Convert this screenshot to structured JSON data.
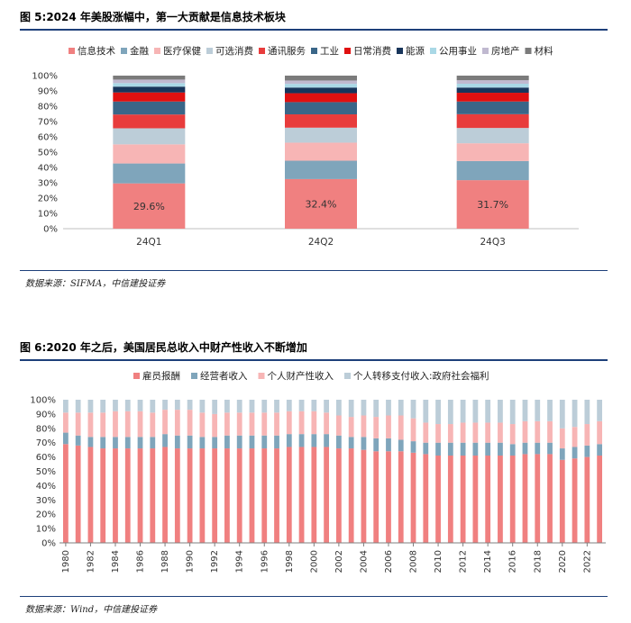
{
  "chart_data": [
    {
      "type": "bar",
      "stacked": "percent",
      "title": "图 5:2024 年美股涨幅中，第一大贡献是信息技术板块",
      "source": "数据来源：SIFMA，中信建投证券",
      "categories": [
        "24Q1",
        "24Q2",
        "24Q3"
      ],
      "ylim": [
        0,
        100
      ],
      "yticks": [
        "0%",
        "10%",
        "20%",
        "30%",
        "40%",
        "50%",
        "60%",
        "70%",
        "80%",
        "90%",
        "100%"
      ],
      "legend_position": "top",
      "series": [
        {
          "name": "信息技术",
          "color": "#f08080",
          "values": [
            29.6,
            32.4,
            31.7
          ]
        },
        {
          "name": "金融",
          "color": "#7fa5bb",
          "values": [
            13.0,
            12.0,
            12.5
          ]
        },
        {
          "name": "医疗保健",
          "color": "#f7b5b5",
          "values": [
            12.5,
            11.8,
            11.6
          ]
        },
        {
          "name": "可选消费",
          "color": "#bccdd8",
          "values": [
            10.5,
            9.8,
            10.0
          ]
        },
        {
          "name": "通讯服务",
          "color": "#e83c3c",
          "values": [
            9.0,
            8.7,
            9.0
          ]
        },
        {
          "name": "工业",
          "color": "#3a6688",
          "values": [
            8.5,
            8.0,
            8.3
          ]
        },
        {
          "name": "日常消费",
          "color": "#e01010",
          "values": [
            5.9,
            5.8,
            5.7
          ]
        },
        {
          "name": "能源",
          "color": "#18355b",
          "values": [
            3.8,
            3.7,
            3.4
          ]
        },
        {
          "name": "公用事业",
          "color": "#a9d8e6",
          "values": [
            2.3,
            2.4,
            2.5
          ]
        },
        {
          "name": "房地产",
          "color": "#c0b9d0",
          "values": [
            2.3,
            2.2,
            2.3
          ]
        },
        {
          "name": "材料",
          "color": "#7b7b7b",
          "values": [
            2.6,
            3.2,
            3.0
          ]
        }
      ],
      "data_labels": [
        "29.6%",
        "32.4%",
        "31.7%"
      ]
    },
    {
      "type": "bar",
      "stacked": "percent",
      "title": "图 6:2020 年之后，美国居民总收入中财产性收入不断增加",
      "source": "数据来源：Wind，中信建投证券",
      "x": [
        1980,
        1981,
        1982,
        1983,
        1984,
        1985,
        1986,
        1987,
        1988,
        1989,
        1990,
        1991,
        1992,
        1993,
        1994,
        1995,
        1996,
        1997,
        1998,
        1999,
        2000,
        2001,
        2002,
        2003,
        2004,
        2005,
        2006,
        2007,
        2008,
        2009,
        2010,
        2011,
        2012,
        2013,
        2014,
        2015,
        2016,
        2017,
        2018,
        2019,
        2020,
        2021,
        2022,
        2023
      ],
      "xtick_labels": [
        "1980",
        "1982",
        "1984",
        "1986",
        "1988",
        "1990",
        "1992",
        "1994",
        "1996",
        "1998",
        "2000",
        "2002",
        "2004",
        "2006",
        "2008",
        "2010",
        "2012",
        "2014",
        "2016",
        "2018",
        "2020",
        "2022"
      ],
      "ylim": [
        0,
        100
      ],
      "yticks": [
        "0%",
        "10%",
        "20%",
        "30%",
        "40%",
        "50%",
        "60%",
        "70%",
        "80%",
        "90%",
        "100%"
      ],
      "legend_position": "top",
      "series": [
        {
          "name": "雇员报酬",
          "color": "#f08080",
          "values": [
            69,
            68,
            67,
            66,
            66,
            66,
            66,
            66,
            67,
            66,
            66,
            66,
            66,
            66,
            66,
            66,
            66,
            66,
            67,
            67,
            67,
            67,
            66,
            66,
            65,
            64,
            64,
            64,
            63,
            62,
            61,
            61,
            61,
            61,
            61,
            61,
            61,
            62,
            62,
            62,
            58,
            59,
            60,
            61
          ]
        },
        {
          "name": "经营者收入",
          "color": "#7fa5bb",
          "values": [
            8,
            7,
            7,
            8,
            8,
            8,
            8,
            8,
            9,
            9,
            9,
            8,
            8,
            9,
            9,
            9,
            9,
            9,
            9,
            9,
            9,
            9,
            9,
            8,
            9,
            9,
            9,
            8,
            8,
            8,
            9,
            9,
            9,
            9,
            9,
            9,
            8,
            8,
            8,
            8,
            8,
            8,
            8,
            8
          ]
        },
        {
          "name": "个人财产性收入",
          "color": "#f7b5b5",
          "values": [
            14,
            16,
            17,
            17,
            18,
            18,
            18,
            17,
            17,
            18,
            18,
            17,
            16,
            16,
            16,
            16,
            16,
            16,
            16,
            16,
            16,
            15,
            14,
            14,
            15,
            15,
            16,
            17,
            16,
            14,
            13,
            13,
            14,
            14,
            14,
            14,
            14,
            15,
            15,
            15,
            14,
            14,
            15,
            16
          ]
        },
        {
          "name": "个人转移支付收入:政府社会福利",
          "color": "#bccdd8",
          "values": [
            9,
            9,
            9,
            9,
            8,
            8,
            8,
            9,
            7,
            7,
            7,
            9,
            10,
            9,
            9,
            9,
            9,
            9,
            8,
            8,
            8,
            9,
            11,
            12,
            11,
            12,
            11,
            11,
            13,
            16,
            17,
            17,
            16,
            16,
            16,
            16,
            17,
            15,
            15,
            15,
            20,
            19,
            17,
            15
          ]
        }
      ]
    }
  ]
}
